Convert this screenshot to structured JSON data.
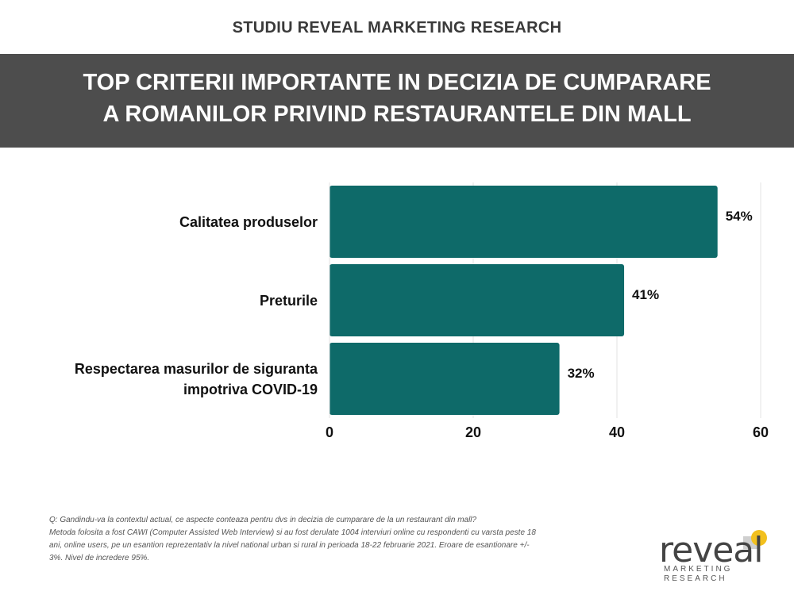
{
  "header": {
    "kicker": "STUDIU REVEAL MARKETING RESEARCH"
  },
  "chart_data": {
    "type": "bar",
    "orientation": "horizontal",
    "title": "TOP CRITERII IMPORTANTE IN DECIZIA DE CUMPARARE A ROMANILOR PRIVIND RESTAURANTELE DIN MALL",
    "categories": [
      "Calitatea produselor",
      "Preturile",
      "Respectarea masurilor de siguranta impotriva COVID-19"
    ],
    "values": [
      54,
      41,
      32
    ],
    "value_labels": [
      "54%",
      "41%",
      "32%"
    ],
    "color": "#0e6a69",
    "xlim": [
      0,
      60
    ],
    "xticks": [
      0,
      20,
      40,
      60
    ],
    "grid": true
  },
  "footnote": {
    "question": "Q: Gandindu-va la contextul actual, ce aspecte conteaza pentru dvs in decizia de cumparare de la un restaurant din mall?",
    "method": "Metoda folosita a fost CAWI (Computer Assisted Web Interview) si au fost derulate 1004 interviuri online cu respondenti cu varsta peste 18 ani, online users, pe un esantion reprezentativ la nivel national urban si rural in perioada 18-22 februarie 2021. Eroare de esantionare +/- 3%. Nivel de incredere 95%."
  },
  "logo": {
    "name": "reveal",
    "tagline": "MARKETING RESEARCH"
  }
}
